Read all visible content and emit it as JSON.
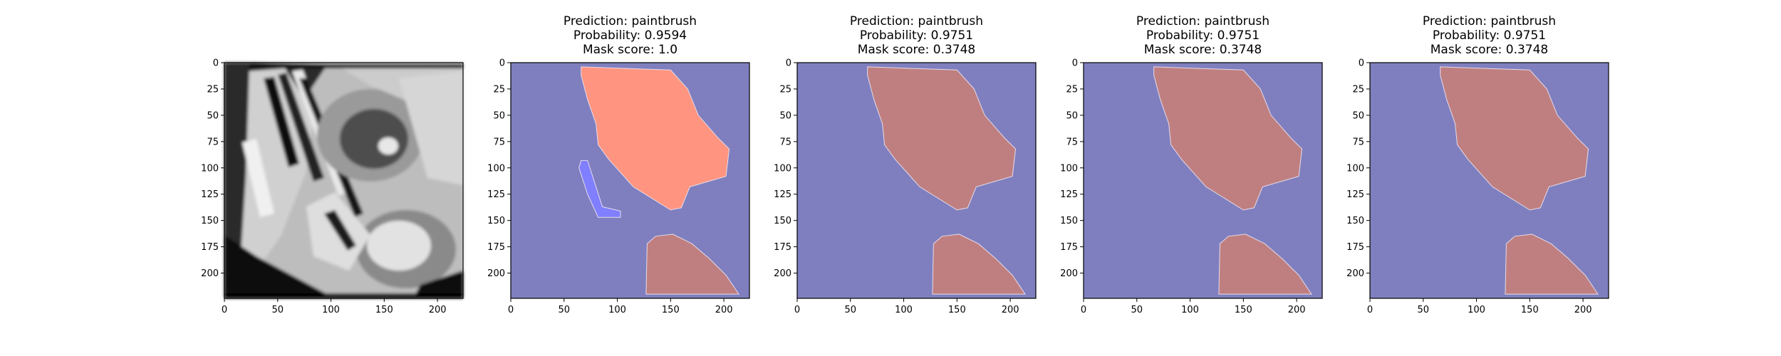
{
  "colors": {
    "background_region": "#7f7fbf",
    "highlight_region": "#ff9580",
    "overlap_region": "#bf7f80",
    "secondary_blob": "#7f7fff",
    "photo_dark": "#111111",
    "photo_light": "#d8d8d8"
  },
  "chart_data": [
    {
      "type": "image",
      "panel": "original-image",
      "title_lines": [],
      "xticks": [
        "0",
        "50",
        "100",
        "150",
        "200"
      ],
      "yticks": [
        "0",
        "25",
        "50",
        "75",
        "100",
        "125",
        "150",
        "175",
        "200"
      ],
      "xlim": [
        0,
        224
      ],
      "ylim": [
        224,
        0
      ]
    },
    {
      "type": "image",
      "panel": "mask-1",
      "title_lines": [
        "Prediction: paintbrush",
        "Probability: 0.9594",
        "Mask score: 1.0"
      ],
      "prediction": "paintbrush",
      "probability": 0.9594,
      "mask_score": 1.0,
      "xticks": [
        "0",
        "50",
        "100",
        "150",
        "200"
      ],
      "yticks": [
        "0",
        "25",
        "50",
        "75",
        "100",
        "125",
        "150",
        "175",
        "200"
      ],
      "xlim": [
        0,
        224
      ],
      "ylim": [
        224,
        0
      ],
      "regions": [
        {
          "name": "upper-blob",
          "color": "#ff9580",
          "points": [
            [
              66,
              4
            ],
            [
              150,
              7
            ],
            [
              166,
              25
            ],
            [
              176,
              50
            ],
            [
              195,
              72
            ],
            [
              205,
              82
            ],
            [
              202,
              108
            ],
            [
              168,
              118
            ],
            [
              160,
              138
            ],
            [
              150,
              140
            ],
            [
              115,
              118
            ],
            [
              92,
              92
            ],
            [
              82,
              78
            ],
            [
              80,
              58
            ],
            [
              72,
              35
            ],
            [
              66,
              12
            ]
          ]
        },
        {
          "name": "lower-blob",
          "color": "#bf7f80",
          "points": [
            [
              127,
              220
            ],
            [
              128,
              172
            ],
            [
              136,
              165
            ],
            [
              152,
              163
            ],
            [
              170,
              172
            ],
            [
              186,
              186
            ],
            [
              202,
              202
            ],
            [
              214,
              220
            ]
          ]
        },
        {
          "name": "thin-strip",
          "color": "#7f7fff",
          "points": [
            [
              66,
              93
            ],
            [
              72,
              93
            ],
            [
              86,
              137
            ],
            [
              103,
              141
            ],
            [
              103,
              147
            ],
            [
              82,
              147
            ],
            [
              72,
              125
            ],
            [
              64,
              100
            ]
          ]
        }
      ]
    },
    {
      "type": "image",
      "panel": "mask-2",
      "title_lines": [
        "Prediction: paintbrush",
        "Probability: 0.9751",
        "Mask score: 0.3748"
      ],
      "prediction": "paintbrush",
      "probability": 0.9751,
      "mask_score": 0.3748,
      "xticks": [
        "0",
        "50",
        "100",
        "150",
        "200"
      ],
      "yticks": [
        "0",
        "25",
        "50",
        "75",
        "100",
        "125",
        "150",
        "175",
        "200"
      ],
      "xlim": [
        0,
        224
      ],
      "ylim": [
        224,
        0
      ],
      "regions": [
        {
          "name": "upper-blob",
          "color": "#bf7f80",
          "points": [
            [
              66,
              4
            ],
            [
              150,
              7
            ],
            [
              166,
              25
            ],
            [
              176,
              50
            ],
            [
              195,
              72
            ],
            [
              205,
              82
            ],
            [
              202,
              108
            ],
            [
              168,
              118
            ],
            [
              160,
              138
            ],
            [
              150,
              140
            ],
            [
              115,
              118
            ],
            [
              92,
              92
            ],
            [
              82,
              78
            ],
            [
              80,
              58
            ],
            [
              72,
              35
            ],
            [
              66,
              12
            ]
          ]
        },
        {
          "name": "lower-blob",
          "color": "#bf7f80",
          "points": [
            [
              127,
              220
            ],
            [
              128,
              172
            ],
            [
              136,
              165
            ],
            [
              152,
              163
            ],
            [
              170,
              172
            ],
            [
              186,
              186
            ],
            [
              202,
              202
            ],
            [
              214,
              220
            ]
          ]
        }
      ]
    },
    {
      "type": "image",
      "panel": "mask-3",
      "title_lines": [
        "Prediction: paintbrush",
        "Probability: 0.9751",
        "Mask score: 0.3748"
      ],
      "prediction": "paintbrush",
      "probability": 0.9751,
      "mask_score": 0.3748,
      "xticks": [
        "0",
        "50",
        "100",
        "150",
        "200"
      ],
      "yticks": [
        "0",
        "25",
        "50",
        "75",
        "100",
        "125",
        "150",
        "175",
        "200"
      ],
      "xlim": [
        0,
        224
      ],
      "ylim": [
        224,
        0
      ],
      "regions": [
        {
          "name": "upper-blob",
          "color": "#bf7f80",
          "points": [
            [
              66,
              4
            ],
            [
              150,
              7
            ],
            [
              166,
              25
            ],
            [
              176,
              50
            ],
            [
              195,
              72
            ],
            [
              205,
              82
            ],
            [
              202,
              108
            ],
            [
              168,
              118
            ],
            [
              160,
              138
            ],
            [
              150,
              140
            ],
            [
              115,
              118
            ],
            [
              92,
              92
            ],
            [
              82,
              78
            ],
            [
              80,
              58
            ],
            [
              72,
              35
            ],
            [
              66,
              12
            ]
          ]
        },
        {
          "name": "lower-blob",
          "color": "#bf7f80",
          "points": [
            [
              127,
              220
            ],
            [
              128,
              172
            ],
            [
              136,
              165
            ],
            [
              152,
              163
            ],
            [
              170,
              172
            ],
            [
              186,
              186
            ],
            [
              202,
              202
            ],
            [
              214,
              220
            ]
          ]
        }
      ]
    },
    {
      "type": "image",
      "panel": "mask-4",
      "title_lines": [
        "Prediction: paintbrush",
        "Probability: 0.9751",
        "Mask score: 0.3748"
      ],
      "prediction": "paintbrush",
      "probability": 0.9751,
      "mask_score": 0.3748,
      "xticks": [
        "0",
        "50",
        "100",
        "150",
        "200"
      ],
      "yticks": [
        "0",
        "25",
        "50",
        "75",
        "100",
        "125",
        "150",
        "175",
        "200"
      ],
      "xlim": [
        0,
        224
      ],
      "ylim": [
        224,
        0
      ],
      "regions": [
        {
          "name": "upper-blob",
          "color": "#bf7f80",
          "points": [
            [
              66,
              4
            ],
            [
              150,
              7
            ],
            [
              166,
              25
            ],
            [
              176,
              50
            ],
            [
              195,
              72
            ],
            [
              205,
              82
            ],
            [
              202,
              108
            ],
            [
              168,
              118
            ],
            [
              160,
              138
            ],
            [
              150,
              140
            ],
            [
              115,
              118
            ],
            [
              92,
              92
            ],
            [
              82,
              78
            ],
            [
              80,
              58
            ],
            [
              72,
              35
            ],
            [
              66,
              12
            ]
          ]
        },
        {
          "name": "lower-blob",
          "color": "#bf7f80",
          "points": [
            [
              127,
              220
            ],
            [
              128,
              172
            ],
            [
              136,
              165
            ],
            [
              152,
              163
            ],
            [
              170,
              172
            ],
            [
              186,
              186
            ],
            [
              202,
              202
            ],
            [
              214,
              220
            ]
          ]
        }
      ]
    }
  ]
}
